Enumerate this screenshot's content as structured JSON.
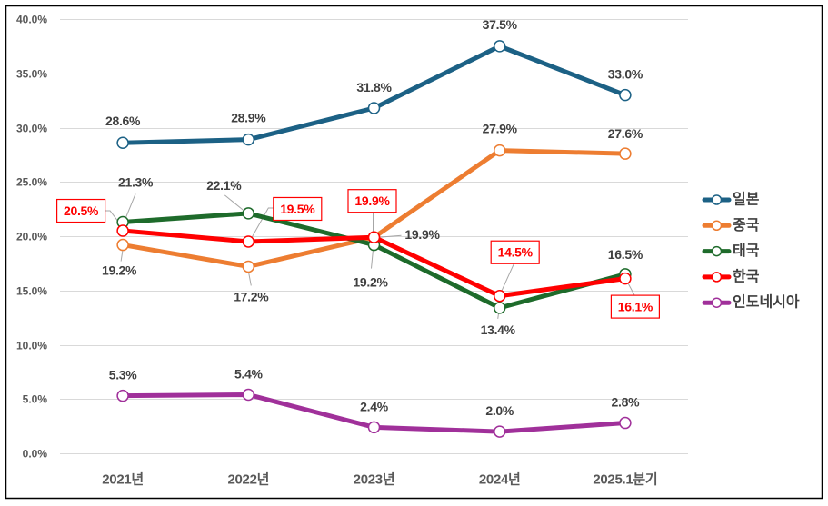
{
  "chart_data": {
    "type": "line",
    "title": "",
    "xlabel": "",
    "ylabel": "",
    "categories": [
      "2021년",
      "2022년",
      "2023년",
      "2024년",
      "2025.1분기"
    ],
    "ylim": [
      0,
      40
    ],
    "yticks": [
      0,
      5,
      10,
      15,
      20,
      25,
      30,
      35,
      40
    ],
    "ytick_labels": [
      "0.0%",
      "5.0%",
      "10.0%",
      "15.0%",
      "20.0%",
      "25.0%",
      "30.0%",
      "35.0%",
      "40.0%"
    ],
    "grid": true,
    "legend": {
      "position": "right"
    },
    "series": [
      {
        "name": "일본",
        "color": "#1C6185",
        "values": [
          28.6,
          28.9,
          31.8,
          37.5,
          33.0
        ],
        "labels": [
          "28.6%",
          "28.9%",
          "31.8%",
          "37.5%",
          "33.0%"
        ]
      },
      {
        "name": "중국",
        "color": "#ED7D31",
        "values": [
          19.2,
          17.2,
          19.9,
          27.9,
          27.6
        ],
        "labels": [
          "19.2%",
          "17.2%",
          "19.9%",
          "27.9%",
          "27.6%"
        ]
      },
      {
        "name": "태국",
        "color": "#1E6B2B",
        "values": [
          21.3,
          22.1,
          19.2,
          13.4,
          16.5
        ],
        "labels": [
          "21.3%",
          "22.1%",
          "19.2%",
          "13.4%",
          "16.5%"
        ]
      },
      {
        "name": "한국",
        "color": "#FF0000",
        "highlighted": true,
        "values": [
          20.5,
          19.5,
          19.9,
          14.5,
          16.1
        ],
        "labels": [
          "20.5%",
          "19.5%",
          "19.9%",
          "14.5%",
          "16.1%"
        ]
      },
      {
        "name": "인도네시아",
        "color": "#A0309A",
        "values": [
          5.3,
          5.4,
          2.4,
          2.0,
          2.8
        ],
        "labels": [
          "5.3%",
          "5.4%",
          "2.4%",
          "2.0%",
          "2.8%"
        ]
      }
    ]
  }
}
